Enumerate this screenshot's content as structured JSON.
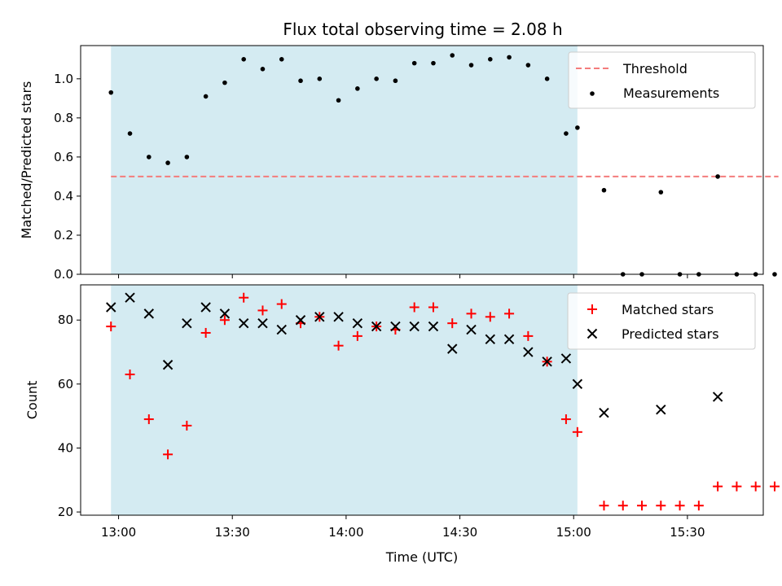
{
  "chart_data": [
    {
      "type": "scatter",
      "title": "Flux total observing time = 2.08 h",
      "xlabel": "",
      "ylabel": "Matched/Predicted stars",
      "xlim": [
        "12:50",
        "15:50"
      ],
      "ylim": [
        0,
        1.17
      ],
      "yticks": [
        0.0,
        0.2,
        0.4,
        0.6,
        0.8,
        1.0
      ],
      "ytick_labels": [
        "0.0",
        "0.2",
        "0.4",
        "0.6",
        "0.8",
        "1.0"
      ],
      "shaded_interval": [
        "12:58",
        "15:01"
      ],
      "shade_color": "#d4ebf2",
      "legend_position": "top-right",
      "grid": false,
      "threshold": {
        "name": "Threshold",
        "value": 0.5,
        "x_range": [
          "12:58",
          "15:54"
        ],
        "color": "#f47c7c",
        "style": "dashed"
      },
      "series": [
        {
          "name": "Measurements",
          "marker": "dot",
          "color": "#000000",
          "x": [
            "12:58",
            "13:03",
            "13:08",
            "13:13",
            "13:18",
            "13:23",
            "13:28",
            "13:33",
            "13:38",
            "13:43",
            "13:48",
            "13:53",
            "13:58",
            "14:03",
            "14:08",
            "14:13",
            "14:18",
            "14:23",
            "14:28",
            "14:33",
            "14:38",
            "14:43",
            "14:48",
            "14:53",
            "14:58",
            "15:01",
            "15:08",
            "15:13",
            "15:18",
            "15:23",
            "15:28",
            "15:33",
            "15:38",
            "15:43",
            "15:48",
            "15:53"
          ],
          "y": [
            0.93,
            0.72,
            0.6,
            0.57,
            0.6,
            0.91,
            0.98,
            1.1,
            1.05,
            1.1,
            0.99,
            1.0,
            0.89,
            0.95,
            1.0,
            0.99,
            1.08,
            1.08,
            1.12,
            1.07,
            1.1,
            1.11,
            1.07,
            1.0,
            0.72,
            0.75,
            0.43,
            0.0,
            0.0,
            0.42,
            0.0,
            0.0,
            0.5,
            0.0,
            0.0,
            0.0
          ]
        }
      ]
    },
    {
      "type": "scatter",
      "title": "",
      "xlabel": "Time (UTC)",
      "ylabel": "Count",
      "xlim": [
        "12:50",
        "15:50"
      ],
      "ylim": [
        19,
        91
      ],
      "yticks": [
        20,
        40,
        60,
        80
      ],
      "ytick_labels": [
        "20",
        "40",
        "60",
        "80"
      ],
      "xticks": [
        "13:00",
        "13:30",
        "14:00",
        "14:30",
        "15:00",
        "15:30"
      ],
      "xtick_labels": [
        "13:00",
        "13:30",
        "14:00",
        "14:30",
        "15:00",
        "15:30"
      ],
      "shaded_interval": [
        "12:58",
        "15:01"
      ],
      "shade_color": "#d4ebf2",
      "legend_position": "top-right",
      "grid": false,
      "series": [
        {
          "name": "Matched stars",
          "marker": "plus",
          "color": "#ff0000",
          "x": [
            "12:58",
            "13:03",
            "13:08",
            "13:13",
            "13:18",
            "13:23",
            "13:28",
            "13:33",
            "13:38",
            "13:43",
            "13:48",
            "13:53",
            "13:58",
            "14:03",
            "14:08",
            "14:13",
            "14:18",
            "14:23",
            "14:28",
            "14:33",
            "14:38",
            "14:43",
            "14:48",
            "14:53",
            "14:58",
            "15:01",
            "15:08",
            "15:13",
            "15:18",
            "15:23",
            "15:28",
            "15:33",
            "15:38",
            "15:43",
            "15:48",
            "15:53"
          ],
          "y": [
            78,
            63,
            49,
            38,
            47,
            76,
            80,
            87,
            83,
            85,
            79,
            81,
            72,
            75,
            78,
            77,
            84,
            84,
            79,
            82,
            81,
            82,
            75,
            67,
            49,
            45,
            22,
            22,
            22,
            22,
            22,
            22,
            28,
            28,
            28,
            28
          ]
        },
        {
          "name": "Predicted stars",
          "marker": "x",
          "color": "#000000",
          "x": [
            "12:58",
            "13:03",
            "13:08",
            "13:13",
            "13:18",
            "13:23",
            "13:28",
            "13:33",
            "13:38",
            "13:43",
            "13:48",
            "13:53",
            "13:58",
            "14:03",
            "14:08",
            "14:13",
            "14:18",
            "14:23",
            "14:28",
            "14:33",
            "14:38",
            "14:43",
            "14:48",
            "14:53",
            "14:58",
            "15:01",
            "15:08",
            "15:23",
            "15:38"
          ],
          "y": [
            84,
            87,
            82,
            66,
            79,
            84,
            82,
            79,
            79,
            77,
            80,
            81,
            81,
            79,
            78,
            78,
            78,
            78,
            71,
            77,
            74,
            74,
            70,
            67,
            68,
            60,
            51,
            52,
            56
          ]
        }
      ]
    }
  ]
}
